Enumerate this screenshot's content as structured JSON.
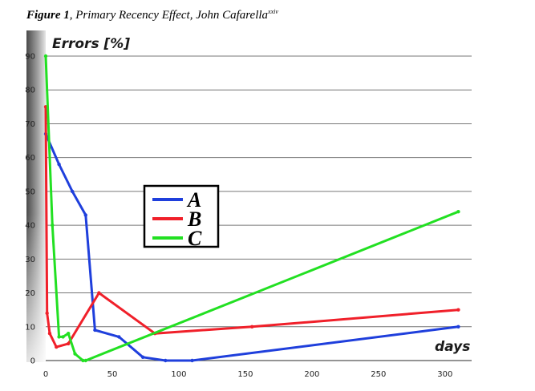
{
  "caption": {
    "figure_label": "Figure 1",
    "text": ", Primary Recency Effect, John Cafarella",
    "superscript": "xxiv"
  },
  "chart_data": {
    "type": "line",
    "title": "",
    "xlabel": "days",
    "ylabel": "Errors [%]",
    "xlim": [
      0,
      320
    ],
    "ylim": [
      0,
      90
    ],
    "xticks": [
      0,
      50,
      100,
      150,
      200,
      250,
      300
    ],
    "yticks": [
      0,
      10,
      20,
      30,
      40,
      50,
      60,
      70,
      80,
      90
    ],
    "grid": "horizontal",
    "legend_position": "center",
    "series": [
      {
        "name": "A",
        "color": "#1f3fdc",
        "x": [
          0,
          10,
          20,
          30,
          37,
          55,
          73,
          90,
          110,
          310
        ],
        "y": [
          67,
          58,
          50,
          43,
          9,
          7,
          1,
          0,
          0,
          10
        ]
      },
      {
        "name": "B",
        "color": "#f0202a",
        "x": [
          0,
          1,
          3,
          8,
          17,
          40,
          82,
          155,
          310
        ],
        "y": [
          75,
          14,
          8,
          4,
          5,
          20,
          8,
          10,
          15
        ]
      },
      {
        "name": "C",
        "color": "#22e022",
        "x": [
          0,
          5,
          10,
          13,
          17,
          22,
          28,
          30,
          310
        ],
        "y": [
          90,
          40,
          7,
          7,
          8,
          2,
          0,
          0,
          44
        ]
      }
    ]
  }
}
